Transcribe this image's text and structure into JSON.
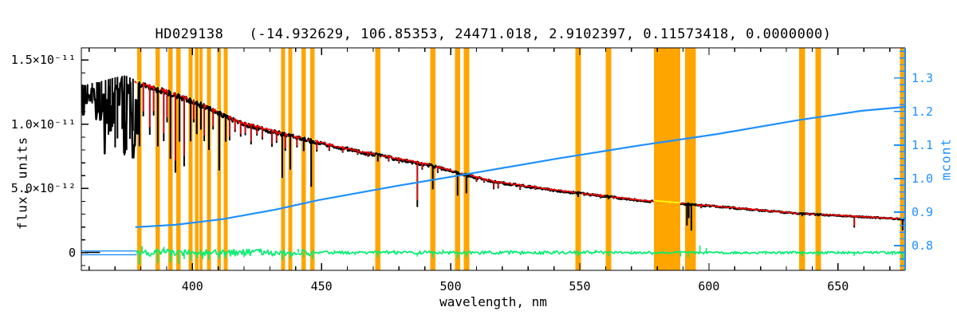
{
  "title": "HD029138   (-14.932629, 106.85353, 24471.018, 2.9102397, 0.11573418, 0.0000000)",
  "chart_data": {
    "type": "line",
    "title": "HD029138   (-14.932629, 106.85353, 24471.018, 2.9102397, 0.11573418, 0.0000000)",
    "star_id": "HD029138",
    "header_params": [
      -14.932629,
      106.85353,
      24471.018,
      2.9102397,
      0.11573418,
      0.0
    ],
    "xlabel": "wavelength, nm",
    "ylabel_left": "flux, units",
    "ylabel_right": "mcont",
    "xlim": [
      357,
      676
    ],
    "ylim_left_e12": [
      -1.38,
      15.95
    ],
    "ylim_right": [
      0.726,
      1.39
    ],
    "x_major_ticks": [
      400,
      450,
      500,
      550,
      600,
      650
    ],
    "x_minor_step_nm": 10,
    "y_left_ticks": [
      {
        "v": 0,
        "label": "0"
      },
      {
        "v": 5,
        "label": "5.0×10⁻¹²"
      },
      {
        "v": 10,
        "label": "1.0×10⁻¹¹"
      },
      {
        "v": 15,
        "label": "1.5×10⁻¹¹"
      }
    ],
    "y_left_minor_step_e12": 1,
    "y_right_ticks": [
      {
        "v": 0.8,
        "label": "0.8"
      },
      {
        "v": 0.9,
        "label": "0.9"
      },
      {
        "v": 1.0,
        "label": "1.0"
      },
      {
        "v": 1.1,
        "label": "1.1"
      },
      {
        "v": 1.2,
        "label": "1.2"
      },
      {
        "v": 1.3,
        "label": "1.3"
      }
    ],
    "y_right_minor_step": 0.02,
    "legend": "off",
    "grid": "off",
    "colors": {
      "observed": "#000000",
      "fit": "#ff0000",
      "masked_fit": "#ffff00",
      "mask_band": "#ffa500",
      "residual": "#00ee6e",
      "mcont": "#1e90ff",
      "axis": "#000000"
    },
    "series": {
      "fit_start_nm": 377.5,
      "continuum_flux_e12": [
        [
          357,
          13.0
        ],
        [
          361,
          13.2
        ],
        [
          365.6,
          13.4
        ],
        [
          370,
          13.65
        ],
        [
          374,
          13.8
        ],
        [
          378,
          13.45
        ],
        [
          387,
          12.9
        ],
        [
          398.6,
          12.1
        ],
        [
          408.9,
          11.2
        ],
        [
          418,
          10.3
        ],
        [
          430.5,
          9.6
        ],
        [
          442.8,
          9.0
        ],
        [
          449,
          8.7
        ],
        [
          464.4,
          8.0
        ],
        [
          479.9,
          7.4
        ],
        [
          492.2,
          6.9
        ],
        [
          501.5,
          6.4
        ],
        [
          510.7,
          5.9
        ],
        [
          516.9,
          5.6
        ],
        [
          541.6,
          4.9
        ],
        [
          572.5,
          4.15
        ],
        [
          587.9,
          3.9
        ],
        [
          603.4,
          3.65
        ],
        [
          634.3,
          3.1
        ],
        [
          676,
          2.65
        ]
      ],
      "noise_forest": {
        "range": [
          357.0,
          379.0
        ],
        "step": 0.55,
        "depth_min": 0.05,
        "depth_max": 0.42
      },
      "absorption_lines": [
        [
          358.2,
          0.08
        ],
        [
          359.4,
          0.1
        ],
        [
          361.2,
          0.12
        ],
        [
          363.0,
          0.15
        ],
        [
          364.8,
          0.18
        ],
        [
          366.4,
          0.25
        ],
        [
          367.5,
          0.32
        ],
        [
          368.2,
          0.22
        ],
        [
          369.0,
          0.28
        ],
        [
          370.1,
          0.4
        ],
        [
          371.0,
          0.35
        ],
        [
          372.8,
          0.3
        ],
        [
          373.7,
          0.45
        ],
        [
          374.5,
          0.42
        ],
        [
          375.8,
          0.35
        ],
        [
          377.0,
          0.3
        ],
        [
          379.5,
          0.38
        ],
        [
          381.0,
          0.2
        ],
        [
          383.5,
          0.3
        ],
        [
          385.0,
          0.18
        ],
        [
          386.6,
          0.36
        ],
        [
          388.9,
          0.32
        ],
        [
          390.2,
          0.2
        ],
        [
          391.5,
          0.42
        ],
        [
          393.4,
          0.5
        ],
        [
          395.0,
          0.3
        ],
        [
          396.8,
          0.45
        ],
        [
          399.3,
          0.28
        ],
        [
          400.5,
          0.15
        ],
        [
          401.7,
          0.22
        ],
        [
          403.3,
          0.18
        ],
        [
          404.6,
          0.25
        ],
        [
          406.4,
          0.3
        ],
        [
          408.0,
          0.15
        ],
        [
          410.4,
          0.42
        ],
        [
          412.9,
          0.2
        ],
        [
          414.4,
          0.18
        ],
        [
          416.5,
          0.1
        ],
        [
          418.7,
          0.12
        ],
        [
          420.5,
          0.1
        ],
        [
          422.7,
          0.16
        ],
        [
          425.0,
          0.08
        ],
        [
          427.1,
          0.1
        ],
        [
          430.8,
          0.14
        ],
        [
          432.6,
          0.1
        ],
        [
          434.8,
          0.38
        ],
        [
          436.0,
          0.15
        ],
        [
          437.9,
          0.3
        ],
        [
          440.5,
          0.1
        ],
        [
          443.1,
          0.12
        ],
        [
          446.0,
          0.42
        ],
        [
          448.2,
          0.1
        ],
        [
          453.0,
          0.07
        ],
        [
          458.2,
          0.06
        ],
        [
          464.0,
          0.05
        ],
        [
          468.0,
          0.05
        ],
        [
          471.8,
          0.08
        ],
        [
          476.0,
          0.06
        ],
        [
          480.0,
          0.06
        ],
        [
          487.1,
          0.5
        ],
        [
          489.0,
          0.08
        ],
        [
          493.1,
          0.28
        ],
        [
          495.0,
          0.08
        ],
        [
          502.7,
          0.3
        ],
        [
          506.1,
          0.25
        ],
        [
          510.0,
          0.07
        ],
        [
          513.0,
          0.06
        ],
        [
          516.7,
          0.12
        ],
        [
          518.4,
          0.1
        ],
        [
          526.9,
          0.08
        ],
        [
          532.8,
          0.05
        ],
        [
          539.0,
          0.04
        ],
        [
          544.0,
          0.05
        ],
        [
          549.4,
          0.08
        ],
        [
          552.0,
          0.04
        ],
        [
          558.0,
          0.06
        ],
        [
          561.1,
          0.06
        ],
        [
          567.0,
          0.04
        ],
        [
          574.0,
          0.04
        ],
        [
          585.0,
          0.04
        ],
        [
          591.5,
          0.45
        ],
        [
          592.2,
          0.3
        ],
        [
          593.2,
          0.55
        ],
        [
          597.0,
          0.08
        ],
        [
          604.0,
          0.04
        ],
        [
          612.2,
          0.05
        ],
        [
          616.0,
          0.05
        ],
        [
          623.0,
          0.05
        ],
        [
          628.0,
          0.04
        ],
        [
          636.1,
          0.08
        ],
        [
          642.3,
          0.06
        ],
        [
          649.0,
          0.04
        ],
        [
          653.0,
          0.05
        ],
        [
          656.3,
          0.32
        ],
        [
          660.0,
          0.05
        ],
        [
          663.0,
          0.04
        ],
        [
          667.0,
          0.04
        ],
        [
          671.0,
          0.05
        ],
        [
          675.0,
          0.35
        ]
      ],
      "mask_bands_nm": [
        [
          378.6,
          380.4
        ],
        [
          385.7,
          387.5
        ],
        [
          390.7,
          392.3
        ],
        [
          393.8,
          395.4
        ],
        [
          398.5,
          400.1
        ],
        [
          401.0,
          402.4
        ],
        [
          402.7,
          404.0
        ],
        [
          405.6,
          407.2
        ],
        [
          409.7,
          411.1
        ],
        [
          412.1,
          413.7
        ],
        [
          434.3,
          435.9
        ],
        [
          437.1,
          438.7
        ],
        [
          442.3,
          443.9
        ],
        [
          445.7,
          447.3
        ],
        [
          470.8,
          472.8
        ],
        [
          492.1,
          494.1
        ],
        [
          501.7,
          503.7
        ],
        [
          505.0,
          507.2
        ],
        [
          548.3,
          550.5
        ],
        [
          560.0,
          562.2
        ],
        [
          578.7,
          588.9
        ],
        [
          590.7,
          595.0
        ],
        [
          635.0,
          637.2
        ],
        [
          641.2,
          643.4
        ],
        [
          674.0,
          676.0
        ]
      ],
      "mcont_curve": [
        [
          377.9,
          0.855
        ],
        [
          393.4,
          0.862
        ],
        [
          411.9,
          0.879
        ],
        [
          432,
          0.907
        ],
        [
          449,
          0.936
        ],
        [
          479.9,
          0.979
        ],
        [
          510.7,
          1.019
        ],
        [
          541.6,
          1.06
        ],
        [
          572.5,
          1.098
        ],
        [
          603.4,
          1.133
        ],
        [
          634.3,
          1.174
        ],
        [
          659,
          1.202
        ],
        [
          676,
          1.214
        ]
      ],
      "flat_segments": [
        {
          "color": "mcont",
          "nm": [
            357,
            378.5
          ],
          "flux_e12": 0.13
        },
        {
          "color": "mcont",
          "nm": [
            357,
            378.5
          ],
          "flux_e12": -0.16
        },
        {
          "color": "observed",
          "nm": [
            358.3,
            364.2
          ],
          "flux_e12": 0.02
        }
      ],
      "residual": {
        "start_nm": 378.3,
        "end_nm": 676,
        "amp_bands": [
          {
            "to_nm": 446,
            "amp_e12": 0.27
          },
          {
            "to_nm": 560,
            "amp_e12": 0.12
          },
          {
            "to_nm": 676,
            "amp_e12": 0.09
          }
        ],
        "spikes_e12": [
          [
            379.5,
            -0.9
          ],
          [
            380.5,
            0.5
          ],
          [
            386.6,
            -0.8
          ],
          [
            389,
            0.45
          ],
          [
            391.5,
            -0.75
          ],
          [
            394.6,
            -0.85
          ],
          [
            396.8,
            -0.5
          ],
          [
            399.3,
            -0.6
          ],
          [
            401.7,
            -0.45
          ],
          [
            404,
            -0.5
          ],
          [
            406.4,
            -0.55
          ],
          [
            410.4,
            -0.5
          ],
          [
            412.9,
            -0.45
          ],
          [
            416,
            0.3
          ],
          [
            420,
            -0.35
          ],
          [
            426,
            0.3
          ],
          [
            434.8,
            -0.6
          ],
          [
            437.9,
            -0.45
          ],
          [
            441,
            0.3
          ],
          [
            443.1,
            -0.35
          ],
          [
            446.5,
            -0.5
          ],
          [
            455,
            0.2
          ],
          [
            463,
            -0.2
          ],
          [
            471.8,
            -0.35
          ],
          [
            478,
            0.2
          ],
          [
            487.1,
            -0.3
          ],
          [
            493.1,
            -0.4
          ],
          [
            497,
            0.25
          ],
          [
            502.7,
            -0.45
          ],
          [
            506.1,
            -0.35
          ],
          [
            515,
            0.2
          ],
          [
            527,
            -0.2
          ],
          [
            540,
            0.15
          ],
          [
            549.4,
            -0.3
          ],
          [
            556,
            0.2
          ],
          [
            561.1,
            -0.3
          ],
          [
            570,
            0.15
          ],
          [
            578,
            -0.2
          ],
          [
            589,
            -0.3
          ],
          [
            592,
            -0.35
          ],
          [
            596.5,
            0.55
          ],
          [
            599,
            0.35
          ],
          [
            610,
            0.15
          ],
          [
            622,
            -0.15
          ],
          [
            636.1,
            -0.3
          ],
          [
            642.3,
            -0.25
          ],
          [
            650,
            0.15
          ],
          [
            656.3,
            -0.25
          ],
          [
            665,
            0.15
          ],
          [
            671,
            -0.2
          ],
          [
            675,
            -0.6
          ]
        ]
      }
    }
  }
}
